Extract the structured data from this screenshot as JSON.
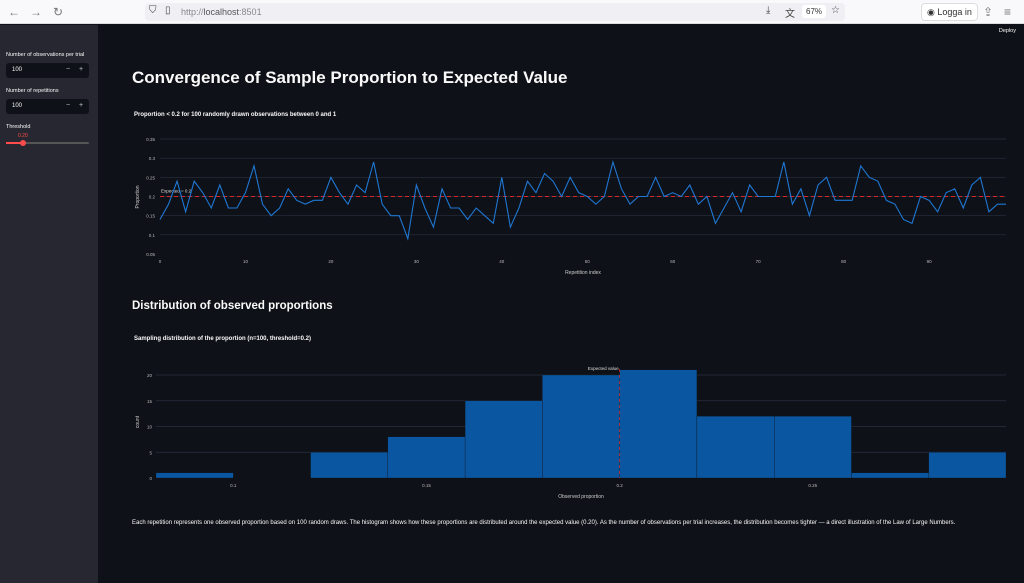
{
  "browser": {
    "url_prefix": "http://",
    "url_host": "localhost",
    "url_port": ":8501",
    "zoom": "67%",
    "login": "Logga in"
  },
  "app": {
    "deploy": "Deploy",
    "title": "Convergence of Sample Proportion to Expected Value",
    "section2": "Distribution of observed proportions",
    "caption": "Each repetition represents one observed proportion based on 100 random draws. The histogram shows how these proportions are distributed around the expected value (0.20). As the number of observations per trial increases, the distribution becomes tighter — a direct illustration of the Law of Large Numbers."
  },
  "sidebar": {
    "obs_label": "Number of observations per trial",
    "obs_value": "100",
    "rep_label": "Number of repetitions",
    "rep_value": "100",
    "minus": "−",
    "plus": "+",
    "threshold_label": "Threshold",
    "threshold_value": "0.20",
    "threshold_fraction": 0.2
  },
  "colors": {
    "line": "#1f77d4",
    "bar": "#0b56a0",
    "ref": "#d62728"
  },
  "chart_data": [
    {
      "type": "line",
      "title": "Proportion < 0.2 for 100 randomly drawn observations between 0 and 1",
      "xlabel": "Repetition index",
      "ylabel": "Proportion",
      "xlim": [
        0,
        99
      ],
      "ylim": [
        0.05,
        0.35
      ],
      "xticks": [
        0,
        10,
        20,
        30,
        40,
        50,
        60,
        70,
        80,
        90
      ],
      "yticks": [
        0.05,
        0.1,
        0.15,
        0.2,
        0.25,
        0.3,
        0.35
      ],
      "ytick_labels": [
        "0.05",
        "0.1",
        "0.15",
        "0.2",
        "0.25",
        "0.3",
        "0.35"
      ],
      "reference": {
        "y": 0.2,
        "label": "Expected = 0.2"
      },
      "y": [
        0.14,
        0.18,
        0.24,
        0.16,
        0.24,
        0.21,
        0.17,
        0.23,
        0.17,
        0.17,
        0.21,
        0.28,
        0.18,
        0.15,
        0.17,
        0.22,
        0.19,
        0.18,
        0.19,
        0.19,
        0.25,
        0.21,
        0.18,
        0.23,
        0.21,
        0.29,
        0.18,
        0.15,
        0.15,
        0.09,
        0.23,
        0.17,
        0.12,
        0.22,
        0.17,
        0.17,
        0.14,
        0.17,
        0.15,
        0.13,
        0.25,
        0.12,
        0.17,
        0.24,
        0.21,
        0.26,
        0.24,
        0.2,
        0.25,
        0.21,
        0.2,
        0.18,
        0.2,
        0.29,
        0.22,
        0.18,
        0.2,
        0.2,
        0.25,
        0.2,
        0.21,
        0.2,
        0.23,
        0.18,
        0.2,
        0.13,
        0.17,
        0.21,
        0.16,
        0.23,
        0.2,
        0.2,
        0.2,
        0.29,
        0.18,
        0.22,
        0.15,
        0.23,
        0.25,
        0.19,
        0.19,
        0.19,
        0.28,
        0.25,
        0.24,
        0.19,
        0.18,
        0.14,
        0.13,
        0.2,
        0.19,
        0.16,
        0.21,
        0.22,
        0.17,
        0.23,
        0.25,
        0.16,
        0.18,
        0.18
      ]
    },
    {
      "type": "bar",
      "title": "Sampling distribution of the proportion (n=100, threshold=0.2)",
      "xlabel": "Observed proportion",
      "ylabel": "count",
      "xlim": [
        0.08,
        0.3
      ],
      "ylim": [
        0,
        21
      ],
      "xticks": [
        0.1,
        0.15,
        0.2,
        0.25
      ],
      "xtick_labels": [
        "0.1",
        "0.15",
        "0.2",
        "0.25"
      ],
      "yticks": [
        0,
        5,
        10,
        15,
        20
      ],
      "ytick_labels": [
        "0",
        "5",
        "10",
        "15",
        "20"
      ],
      "bin_edges": [
        0.08,
        0.1,
        0.12,
        0.14,
        0.16,
        0.18,
        0.2,
        0.22,
        0.24,
        0.26,
        0.28,
        0.3
      ],
      "counts": [
        1,
        0,
        5,
        8,
        15,
        20,
        21,
        12,
        12,
        1,
        5
      ],
      "reference": {
        "x": 0.2,
        "label": "Expected value"
      }
    }
  ]
}
